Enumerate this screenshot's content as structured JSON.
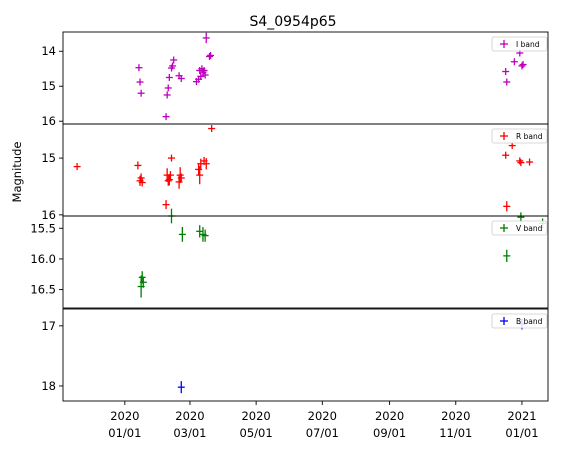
{
  "chart_data": {
    "type": "scatter",
    "title": "S4_0954p65",
    "ylabel": "Magnitude",
    "x_axis": {
      "lim": [
        "2019-11-05",
        "2021-01-25"
      ],
      "ticks": [
        {
          "date": "2020-01-01",
          "line1": "2020",
          "line2": "01/01"
        },
        {
          "date": "2020-03-01",
          "line1": "2020",
          "line2": "03/01"
        },
        {
          "date": "2020-05-01",
          "line1": "2020",
          "line2": "05/01"
        },
        {
          "date": "2020-07-01",
          "line1": "2020",
          "line2": "07/01"
        },
        {
          "date": "2020-09-01",
          "line1": "2020",
          "line2": "09/01"
        },
        {
          "date": "2020-11-01",
          "line1": "2020",
          "line2": "11/01"
        },
        {
          "date": "2021-01-01",
          "line1": "2021",
          "line2": "01/01"
        }
      ]
    },
    "panels": [
      {
        "name": "I band",
        "color": "#bf00bf",
        "ylim": [
          16.08,
          13.45
        ],
        "yticks": [
          14,
          15,
          16
        ],
        "points": [
          [
            "2020-01-14",
            14.47,
            0.06
          ],
          [
            "2020-01-15",
            14.88,
            0.07
          ],
          [
            "2020-01-16",
            15.2,
            0.08
          ],
          [
            "2020-02-08",
            15.87,
            0.06
          ],
          [
            "2020-02-09",
            15.25,
            0.06
          ],
          [
            "2020-02-10",
            15.05,
            0.06
          ],
          [
            "2020-02-11",
            14.75,
            0.06
          ],
          [
            "2020-02-13",
            14.48,
            0.06
          ],
          [
            "2020-02-14",
            14.42,
            0.06
          ],
          [
            "2020-02-15",
            14.25,
            0.07
          ],
          [
            "2020-02-20",
            14.7,
            0.06
          ],
          [
            "2020-02-22",
            14.78,
            0.05
          ],
          [
            "2020-03-07",
            14.87,
            0.05
          ],
          [
            "2020-03-09",
            14.8,
            0.06
          ],
          [
            "2020-03-10",
            14.55,
            0.08
          ],
          [
            "2020-03-11",
            14.72,
            0.06
          ],
          [
            "2020-03-12",
            14.5,
            0.07
          ],
          [
            "2020-03-13",
            14.6,
            0.05
          ],
          [
            "2020-03-14",
            14.55,
            0.06
          ],
          [
            "2020-03-15",
            14.68,
            0.06
          ],
          [
            "2020-03-16",
            13.62,
            0.15
          ],
          [
            "2020-03-19",
            14.15,
            0.05
          ],
          [
            "2020-03-20",
            14.12,
            0.05
          ],
          [
            "2020-12-17",
            14.58,
            0.06
          ],
          [
            "2020-12-18",
            14.88,
            0.06
          ],
          [
            "2020-12-25",
            14.3,
            0.06
          ],
          [
            "2020-12-30",
            14.05,
            0.05
          ],
          [
            "2021-01-01",
            14.42,
            0.07
          ],
          [
            "2021-01-02",
            14.38,
            0.06
          ]
        ]
      },
      {
        "name": "R band",
        "color": "#ff0000",
        "ylim": [
          16.02,
          14.4
        ],
        "yticks": [
          15,
          16
        ],
        "points": [
          [
            "2019-11-18",
            15.15,
            0.06
          ],
          [
            "2020-01-13",
            15.13,
            0.07
          ],
          [
            "2020-01-15",
            15.4,
            0.09
          ],
          [
            "2020-01-16",
            15.35,
            0.08
          ],
          [
            "2020-01-17",
            15.43,
            0.07
          ],
          [
            "2020-02-08",
            15.82,
            0.08
          ],
          [
            "2020-02-09",
            15.3,
            0.12
          ],
          [
            "2020-02-10",
            15.4,
            0.09
          ],
          [
            "2020-02-11",
            15.38,
            0.1
          ],
          [
            "2020-02-12",
            15.3,
            0.07
          ],
          [
            "2020-02-13",
            15.0,
            0.05
          ],
          [
            "2020-02-20",
            15.42,
            0.12
          ],
          [
            "2020-02-21",
            15.3,
            0.14
          ],
          [
            "2020-02-22",
            15.35,
            0.08
          ],
          [
            "2020-03-09",
            15.2,
            0.1
          ],
          [
            "2020-03-10",
            15.3,
            0.16
          ],
          [
            "2020-03-11",
            15.1,
            0.09
          ],
          [
            "2020-03-14",
            15.05,
            0.07
          ],
          [
            "2020-03-16",
            15.1,
            0.1
          ],
          [
            "2020-03-21",
            14.48,
            0.06
          ],
          [
            "2020-12-17",
            14.95,
            0.06
          ],
          [
            "2020-12-18",
            15.85,
            0.09
          ],
          [
            "2020-12-23",
            14.78,
            0.06
          ],
          [
            "2020-12-30",
            15.05,
            0.06
          ],
          [
            "2020-12-31",
            15.08,
            0.06
          ],
          [
            "2021-01-08",
            15.07,
            0.05
          ]
        ]
      },
      {
        "name": "V band",
        "color": "#008000",
        "ylim": [
          16.8,
          15.3
        ],
        "yticks": [
          15.5,
          16.0,
          16.5
        ],
        "points": [
          [
            "2020-01-16",
            16.45,
            0.18
          ],
          [
            "2020-01-17",
            16.3,
            0.1
          ],
          [
            "2020-01-18",
            16.38,
            0.09
          ],
          [
            "2020-02-13",
            15.3,
            0.12
          ],
          [
            "2020-02-23",
            15.6,
            0.12
          ],
          [
            "2020-03-10",
            15.55,
            0.1
          ],
          [
            "2020-03-13",
            15.6,
            0.12
          ],
          [
            "2020-03-15",
            15.62,
            0.1
          ],
          [
            "2020-12-18",
            15.95,
            0.1
          ],
          [
            "2020-12-31",
            15.32,
            0.08
          ],
          [
            "2021-01-20",
            15.42,
            0.08
          ]
        ]
      },
      {
        "name": "B band",
        "color": "#0000ff",
        "ylim": [
          18.25,
          16.72
        ],
        "yticks": [
          17,
          18
        ],
        "points": [
          [
            "2020-02-22",
            18.02,
            0.1
          ],
          [
            "2021-01-01",
            16.97,
            0.09
          ]
        ]
      }
    ]
  }
}
